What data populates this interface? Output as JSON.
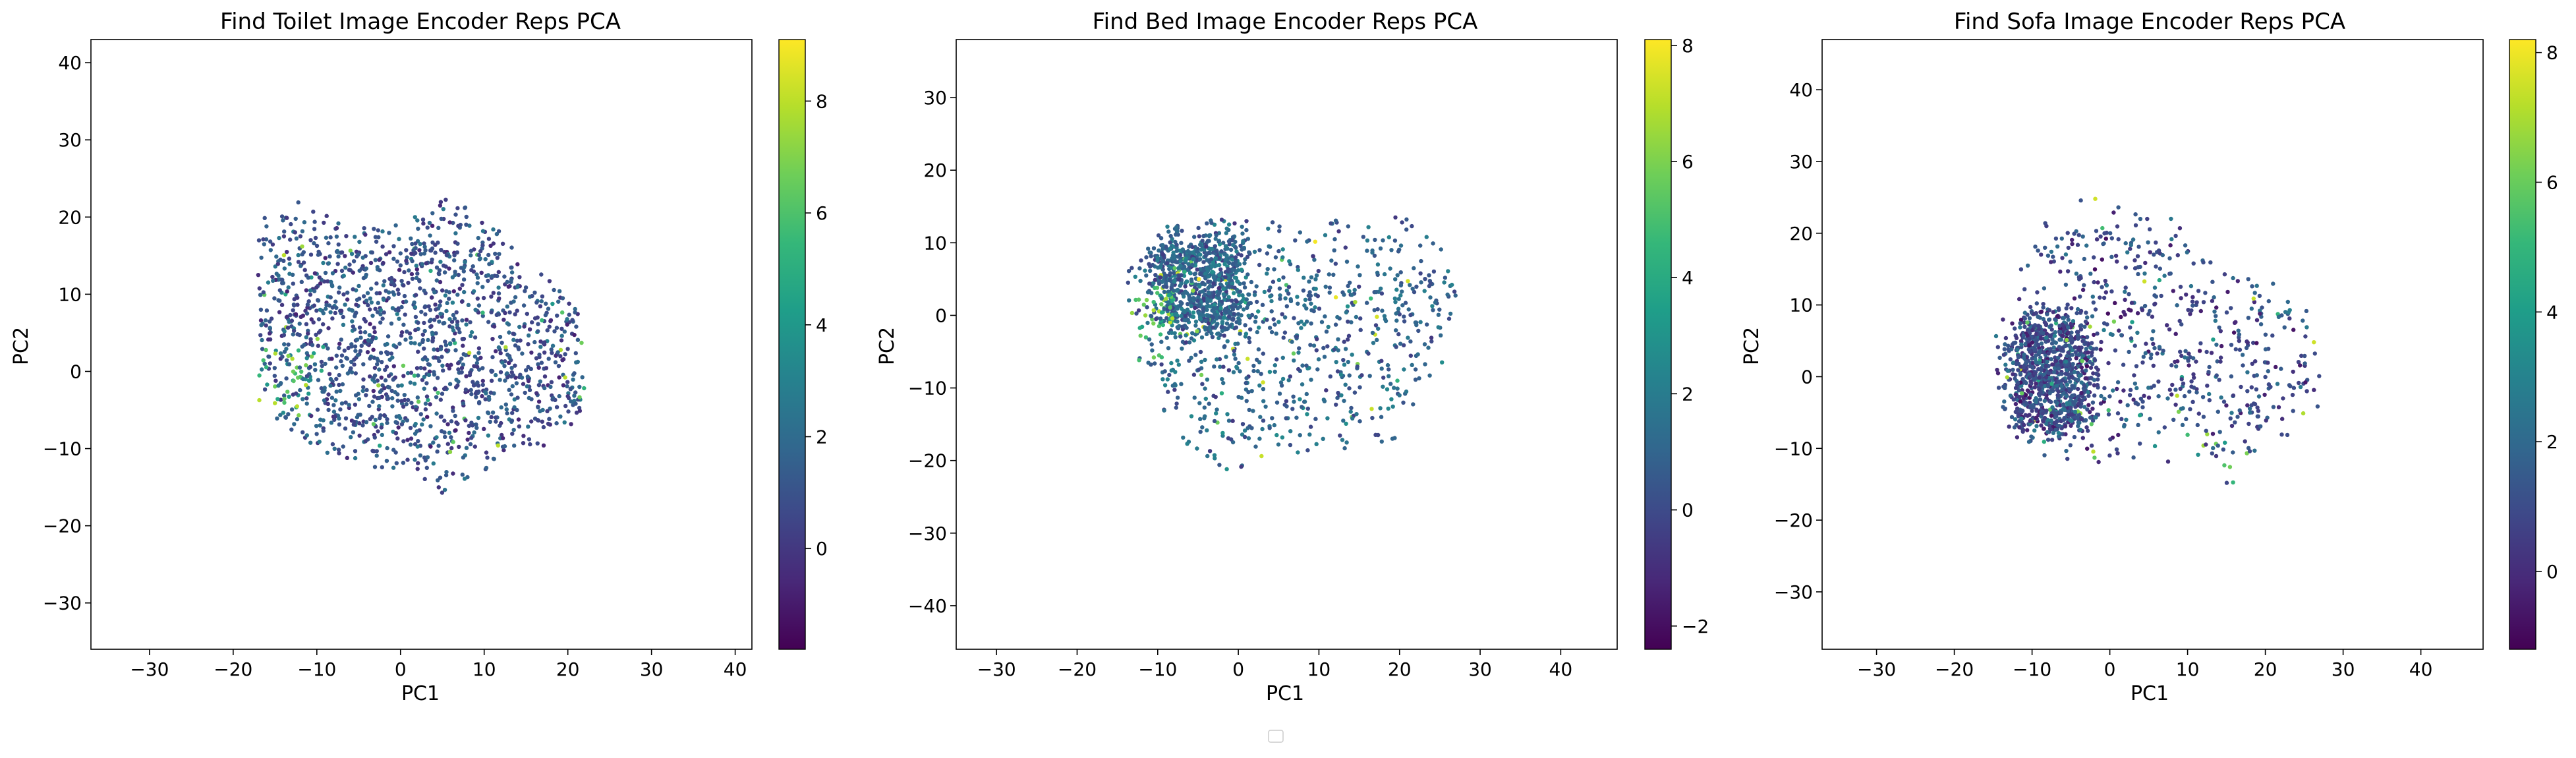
{
  "figure": {
    "legend_box_visible": true,
    "colormap": "viridis",
    "colormap_stops": [
      "#440154",
      "#482878",
      "#3e4989",
      "#31688e",
      "#26828e",
      "#1f9e89",
      "#35b779",
      "#6ece58",
      "#b5de2b",
      "#fde725"
    ]
  },
  "chart_data": [
    {
      "type": "scatter",
      "title": "Find Toilet Image Encoder Reps PCA",
      "xlabel": "PC1",
      "ylabel": "PC2",
      "xlim": [
        -37,
        42
      ],
      "ylim": [
        -36,
        43
      ],
      "xticks": [
        -30,
        -20,
        -10,
        0,
        10,
        20,
        30,
        40
      ],
      "yticks": [
        -30,
        -20,
        -10,
        0,
        10,
        20,
        30,
        40
      ],
      "grid": false,
      "colorbar": {
        "range": [
          -1.8,
          9.1
        ],
        "ticks": [
          0,
          2,
          4,
          6,
          8
        ]
      },
      "cloud": {
        "n_points": 1600,
        "x_range": [
          -17,
          22
        ],
        "y_range": [
          -16,
          23
        ],
        "envelope": {
          "x": [
            -17,
            -12,
            -6,
            0,
            5,
            10,
            15,
            20,
            22
          ],
          "y_low": [
            -4,
            -9,
            -12,
            -13,
            -16,
            -13,
            -11,
            -8,
            -6
          ],
          "y_high": [
            20,
            22,
            20,
            19,
            23,
            20,
            15,
            11,
            5
          ]
        },
        "high_value_region": {
          "x": [
            -17,
            -10
          ],
          "y": [
            -8,
            3
          ],
          "value_range": [
            3,
            8
          ]
        },
        "typical_value_range": [
          -1,
          3
        ]
      }
    },
    {
      "type": "scatter",
      "title": "Find Bed Image Encoder Reps PCA",
      "xlabel": "PC1",
      "ylabel": "PC2",
      "xlim": [
        -35,
        47
      ],
      "ylim": [
        -46,
        38
      ],
      "xticks": [
        -30,
        -20,
        -10,
        0,
        10,
        20,
        30,
        40
      ],
      "yticks": [
        -40,
        -30,
        -20,
        -10,
        0,
        10,
        20,
        30
      ],
      "grid": false,
      "colorbar": {
        "range": [
          -2.4,
          8.1
        ],
        "ticks": [
          -2,
          0,
          2,
          4,
          6,
          8
        ]
      },
      "cloud": {
        "n_points": 1600,
        "x_range": [
          -14,
          27
        ],
        "y_range": [
          -22,
          15
        ],
        "envelope": {
          "x": [
            -14,
            -10,
            -5,
            0,
            5,
            10,
            15,
            20,
            25,
            27
          ],
          "y_low": [
            -2,
            -12,
            -20,
            -22,
            -19,
            -19,
            -18,
            -17,
            -8,
            0
          ],
          "y_high": [
            6,
            12,
            14,
            14,
            13,
            13,
            14,
            14,
            10,
            5
          ]
        },
        "dense_region": {
          "x": [
            -10,
            0
          ],
          "y": [
            -2,
            12
          ]
        },
        "high_value_region": {
          "x": [
            -14,
            -8
          ],
          "y": [
            -6,
            4
          ],
          "value_range": [
            3,
            7
          ]
        },
        "typical_value_range": [
          -1,
          3
        ]
      }
    },
    {
      "type": "scatter",
      "title": "Find Sofa Image Encoder Reps PCA",
      "xlabel": "PC1",
      "ylabel": "PC2",
      "xlim": [
        -37,
        48
      ],
      "ylim": [
        -38,
        47
      ],
      "xticks": [
        -30,
        -20,
        -10,
        0,
        10,
        20,
        30,
        40
      ],
      "yticks": [
        -30,
        -20,
        -10,
        0,
        10,
        20,
        30,
        40
      ],
      "grid": false,
      "colorbar": {
        "range": [
          -1.2,
          8.2
        ],
        "ticks": [
          0,
          2,
          4,
          6,
          8
        ]
      },
      "cloud": {
        "n_points": 1600,
        "x_range": [
          -15,
          27
        ],
        "y_range": [
          -17,
          26
        ],
        "envelope": {
          "x": [
            -15,
            -10,
            -5,
            0,
            5,
            10,
            15,
            20,
            25,
            27
          ],
          "y_low": [
            -5,
            -12,
            -12,
            -12,
            -12,
            -12,
            -17,
            -10,
            -7,
            -4
          ],
          "y_high": [
            5,
            20,
            25,
            25,
            23,
            22,
            15,
            14,
            10,
            4
          ]
        },
        "dense_region": {
          "x": [
            -12,
            -3
          ],
          "y": [
            -8,
            8
          ]
        },
        "high_value_region": {
          "x": [
            5,
            18
          ],
          "y": [
            -17,
            -8
          ],
          "value_range": [
            3,
            7
          ]
        },
        "typical_value_range": [
          -1,
          3
        ]
      }
    }
  ]
}
